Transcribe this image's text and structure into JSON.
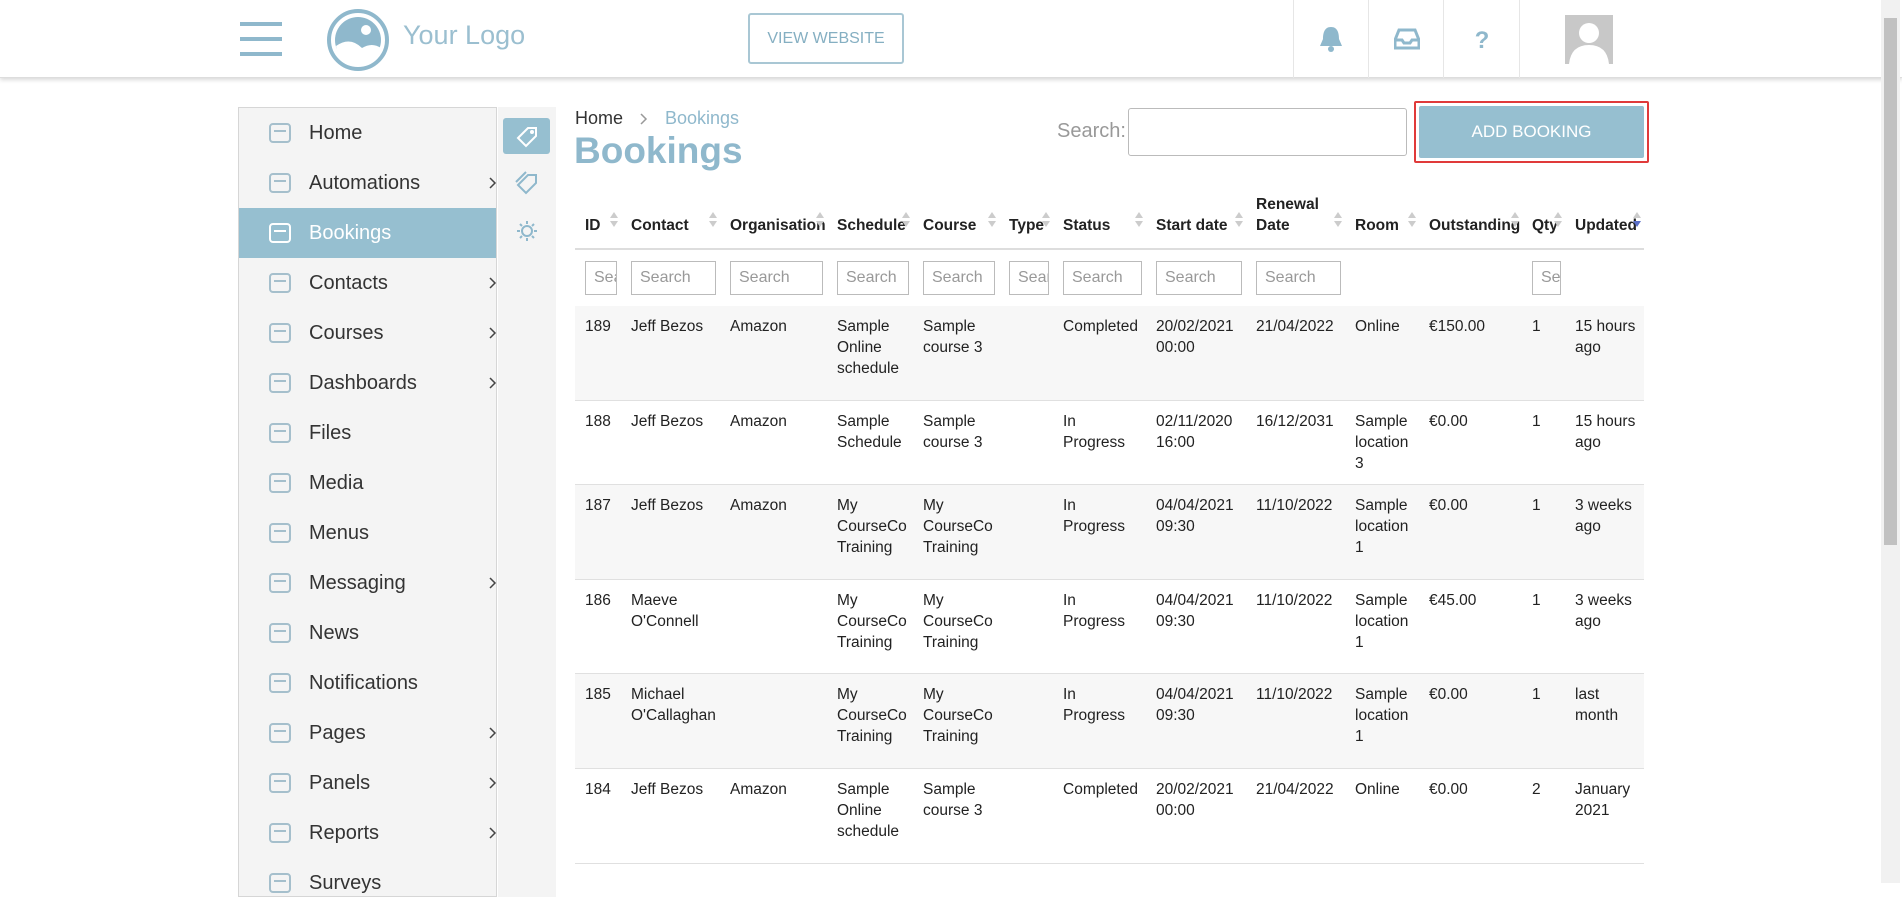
{
  "header": {
    "logo_text": "Your Logo",
    "view_website": "VIEW WEBSITE"
  },
  "sidebar": [
    "Home",
    "Automations",
    "Bookings",
    "Contacts",
    "Courses",
    "Dashboards",
    "Files",
    "Media",
    "Menus",
    "Messaging",
    "News",
    "Notifications",
    "Pages",
    "Panels",
    "Reports",
    "Surveys"
  ],
  "sidebar_expandable": [
    false,
    true,
    false,
    true,
    true,
    true,
    false,
    false,
    false,
    true,
    false,
    false,
    true,
    true,
    true,
    false
  ],
  "breadcrumb": {
    "home": "Home",
    "current": "Bookings"
  },
  "page_title": "Bookings",
  "search_label": "Search:",
  "add_button": "ADD BOOKING",
  "table": {
    "columns": [
      "ID",
      "Contact",
      "Organisation",
      "Schedule",
      "Course",
      "Type",
      "Status",
      "Start date",
      "Renewal Date",
      "Room",
      "Outstanding",
      "Qty",
      "Updated"
    ],
    "filter_placeholder": "Search",
    "filterable": [
      true,
      true,
      true,
      true,
      true,
      true,
      true,
      true,
      true,
      false,
      false,
      true,
      false
    ],
    "rows": [
      [
        "189",
        "Jeff Bezos",
        "Amazon",
        "Sample Online schedule",
        "Sample course 3",
        "",
        "Completed",
        "20/02/2021 00:00",
        "21/04/2022",
        "Online",
        "€150.00",
        "1",
        "15 hours ago"
      ],
      [
        "188",
        "Jeff Bezos",
        "Amazon",
        "Sample Schedule",
        "Sample course 3",
        "",
        "In Progress",
        "02/11/2020 16:00",
        "16/12/2031",
        "Sample location 3",
        "€0.00",
        "1",
        "15 hours ago"
      ],
      [
        "187",
        "Jeff Bezos",
        "Amazon",
        "My CourseCo Training",
        "My CourseCo Training",
        "",
        "In Progress",
        "04/04/2021 09:30",
        "11/10/2022",
        "Sample location 1",
        "€0.00",
        "1",
        "3 weeks ago"
      ],
      [
        "186",
        "Maeve O'Connell",
        "",
        "My CourseCo Training",
        "My CourseCo Training",
        "",
        "In Progress",
        "04/04/2021 09:30",
        "11/10/2022",
        "Sample location 1",
        "€45.00",
        "1",
        "3 weeks ago"
      ],
      [
        "185",
        "Michael O'Callaghan",
        "",
        "My CourseCo Training",
        "My CourseCo Training",
        "",
        "In Progress",
        "04/04/2021 09:30",
        "11/10/2022",
        "Sample location 1",
        "€0.00",
        "1",
        "last month"
      ],
      [
        "184",
        "Jeff Bezos",
        "Amazon",
        "Sample Online schedule",
        "Sample course 3",
        "",
        "Completed",
        "20/02/2021 00:00",
        "21/04/2022",
        "Online",
        "€0.00",
        "2",
        "January 2021"
      ]
    ]
  }
}
